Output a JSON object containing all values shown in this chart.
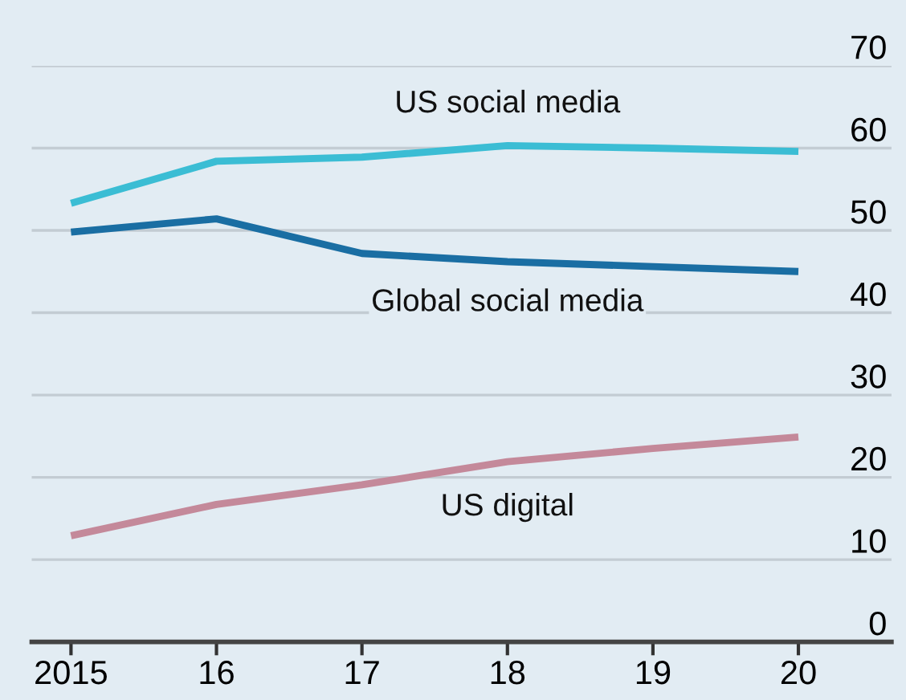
{
  "chart_data": {
    "type": "line",
    "x": [
      2015,
      2016,
      2017,
      2018,
      2019,
      2020
    ],
    "series": [
      {
        "name": "US social media",
        "color": "#3bbdd4",
        "values": [
          53.3,
          58.4,
          58.9,
          60.3,
          60.0,
          59.6
        ]
      },
      {
        "name": "Global social media",
        "color": "#1a6ea3",
        "values": [
          49.8,
          51.4,
          47.2,
          46.2,
          45.6,
          45.0
        ]
      },
      {
        "name": "US digital",
        "color": "#c4899a",
        "values": [
          12.9,
          16.7,
          19.1,
          21.9,
          23.5,
          24.9
        ]
      }
    ],
    "xlim": [
      2014.73,
      2020.64
    ],
    "xticks": [
      2015,
      {
        "value": 2016,
        "label": "16"
      },
      {
        "value": 2017,
        "label": "17"
      },
      {
        "value": 2018,
        "label": "18"
      },
      {
        "value": 2019,
        "label": "19"
      },
      {
        "value": 2020,
        "label": "20"
      }
    ],
    "ylim": [
      0,
      70
    ],
    "yticks": [
      0,
      10,
      20,
      30,
      40,
      50,
      60,
      70
    ],
    "grid": "y",
    "legend": false,
    "marker": "none",
    "line_style": "solid"
  }
}
